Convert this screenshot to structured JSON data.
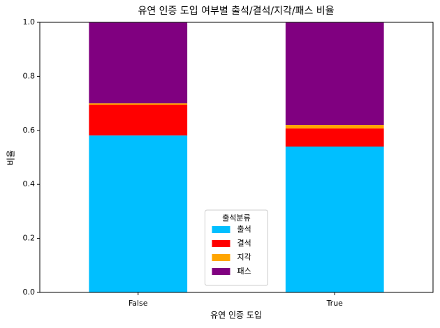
{
  "chart_data": {
    "type": "stacked_bar",
    "title": "유연 인증 도입 여부별 출석/결석/지각/패스 비율",
    "x_label": "유연 인증 도입",
    "y_label": "비율",
    "categories": [
      "False",
      "True"
    ],
    "series": [
      {
        "name": "출석",
        "color": "#00bfff",
        "values": [
          0.581,
          0.54
        ]
      },
      {
        "name": "결석",
        "color": "#ff0000",
        "values": [
          0.114,
          0.067
        ]
      },
      {
        "name": "지각",
        "color": "#ffa500",
        "values": [
          0.005,
          0.013
        ]
      },
      {
        "name": "패스",
        "color": "#800080",
        "values": [
          0.3,
          0.38
        ]
      }
    ],
    "legend_title": "출석분류",
    "legend_position": "lower center",
    "ylim": [
      0,
      1
    ],
    "yticks": [
      {
        "value": 0,
        "label": "0.0"
      },
      0.2,
      0.4,
      0.6,
      0.8,
      {
        "value": 1,
        "label": "1.0"
      }
    ],
    "grid": false
  }
}
